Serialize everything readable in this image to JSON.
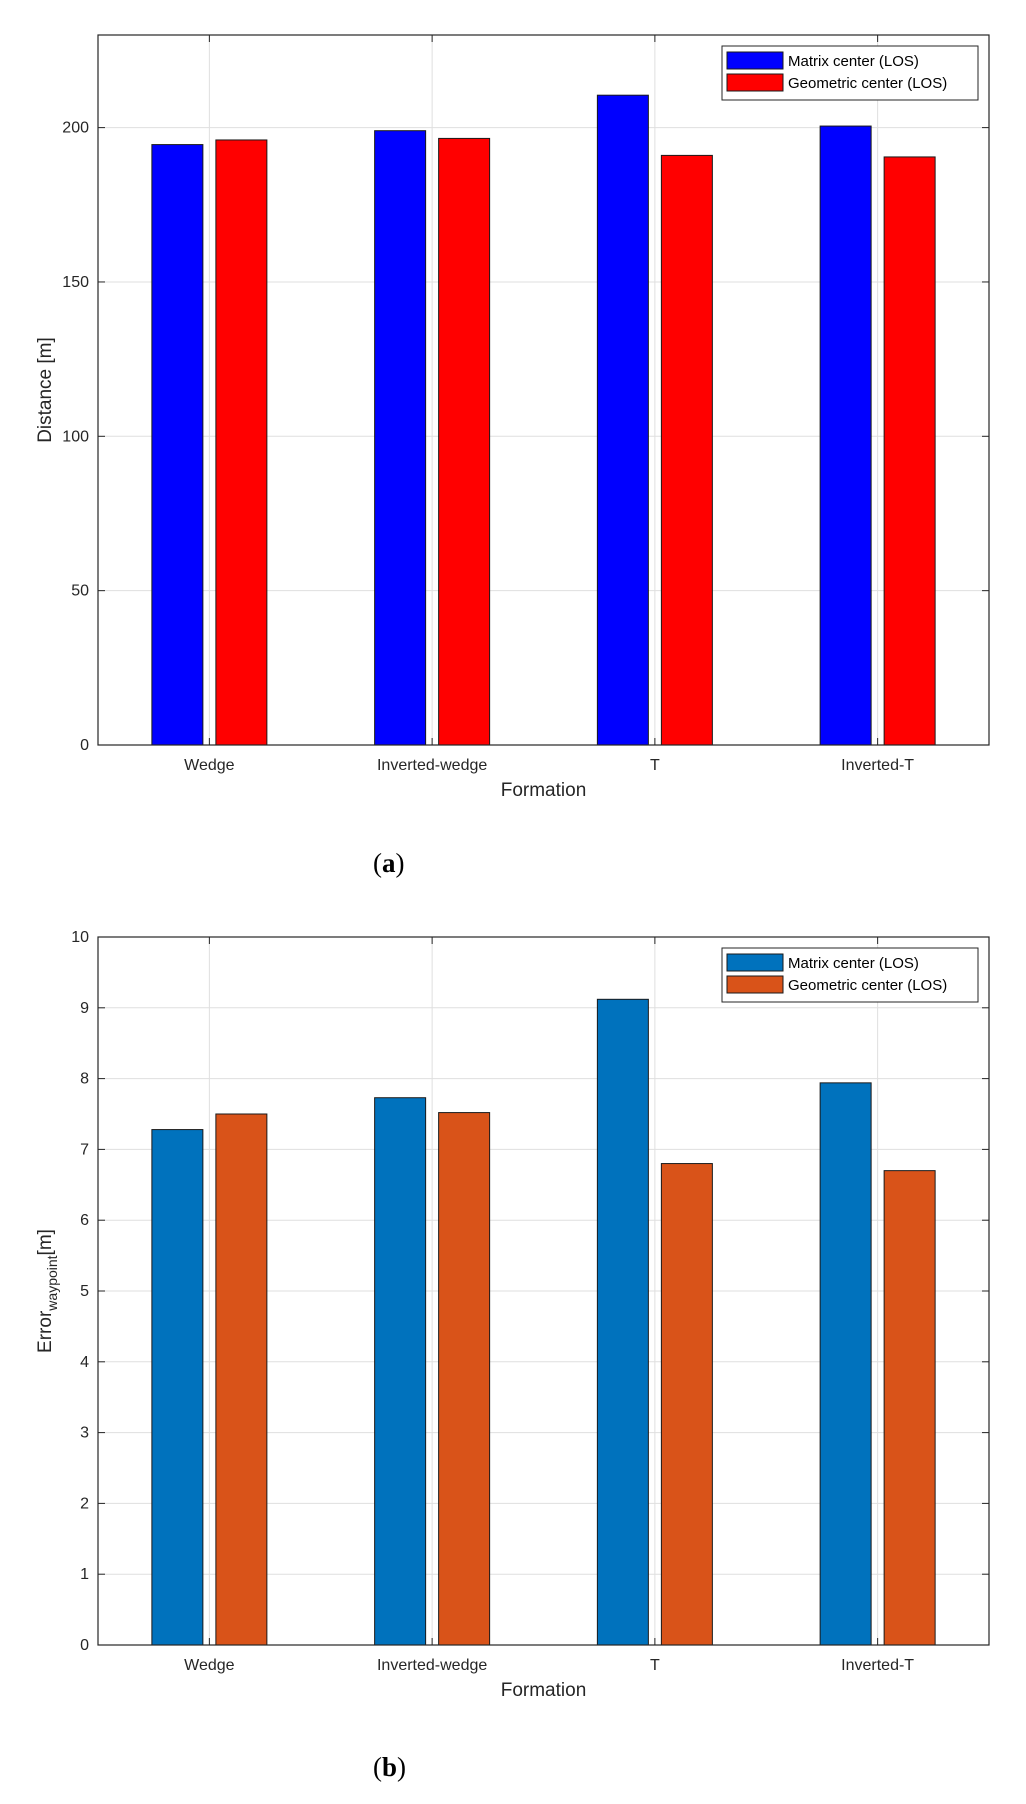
{
  "chart_data": [
    {
      "type": "bar",
      "title": "",
      "caption_open": "(",
      "caption_letter": "a",
      "caption_close": ")",
      "xlabel": "Formation",
      "ylabel": "Distance [m]",
      "ylabel_sub": "",
      "ylabel_tail": "",
      "categories": [
        "Wedge",
        "Inverted-wedge",
        "T",
        "Inverted-T"
      ],
      "ylim": [
        0,
        230
      ],
      "yticks": [
        0,
        50,
        100,
        150,
        200
      ],
      "grid": true,
      "legend_position": "top-right",
      "series": [
        {
          "name": "Matrix center (LOS)",
          "color": "#0000FF",
          "values": [
            194.5,
            199,
            210.5,
            200.5
          ]
        },
        {
          "name": "Geometric center (LOS)",
          "color": "#FF0000",
          "values": [
            196,
            196.5,
            191,
            190.5
          ]
        }
      ]
    },
    {
      "type": "bar",
      "title": "",
      "caption_open": "(",
      "caption_letter": "b",
      "caption_close": ")",
      "xlabel": "Formation",
      "ylabel": "Error",
      "ylabel_sub": "waypoint",
      "ylabel_tail": "[m]",
      "categories": [
        "Wedge",
        "Inverted-wedge",
        "T",
        "Inverted-T"
      ],
      "ylim": [
        0,
        10
      ],
      "yticks": [
        0,
        1,
        2,
        3,
        4,
        5,
        6,
        7,
        8,
        9,
        10
      ],
      "grid": true,
      "legend_position": "top-right",
      "series": [
        {
          "name": "Matrix center (LOS)",
          "color": "#0072BD",
          "values": [
            7.28,
            7.73,
            9.12,
            7.94
          ]
        },
        {
          "name": "Geometric center (LOS)",
          "color": "#D95319",
          "values": [
            7.5,
            7.52,
            6.8,
            6.7
          ]
        }
      ]
    }
  ]
}
